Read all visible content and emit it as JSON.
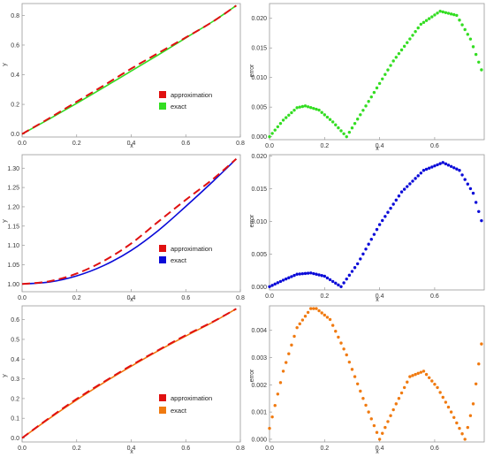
{
  "colors": {
    "approximation": "#e01010",
    "exact_1": "#33dd22",
    "exact_2": "#0a0ad8",
    "exact_3": "#f07a10",
    "frame": "#999999"
  },
  "chart_data": [
    {
      "id": "p1",
      "type": "line",
      "xlabel": "x",
      "ylabel": "y",
      "xlim": [
        0,
        0.8
      ],
      "ylim": [
        -0.02,
        0.88
      ],
      "xticks": [
        "0.0",
        "0.2",
        "0.4",
        "0.6",
        "0.8"
      ],
      "yticks": [
        "0.0",
        "0.2",
        "0.4",
        "0.6",
        "0.8"
      ],
      "legend": [
        "approximation",
        "exact"
      ],
      "legend_position": "center-right",
      "series": [
        {
          "name": "approximation",
          "style": "dashed",
          "color": "#e01010",
          "x": [
            0,
            0.1,
            0.2,
            0.3,
            0.4,
            0.5,
            0.6,
            0.7,
            0.785
          ],
          "y": [
            0,
            0.107,
            0.218,
            0.328,
            0.441,
            0.547,
            0.651,
            0.759,
            0.866
          ]
        },
        {
          "name": "exact",
          "style": "solid",
          "color": "#33dd22",
          "x": [
            0,
            0.1,
            0.2,
            0.3,
            0.4,
            0.5,
            0.6,
            0.7,
            0.785
          ],
          "y": [
            0,
            0.102,
            0.207,
            0.315,
            0.425,
            0.535,
            0.648,
            0.76,
            0.866
          ]
        }
      ]
    },
    {
      "id": "p2",
      "type": "scatter",
      "xlabel": "x",
      "ylabel": "error",
      "xlim": [
        0,
        0.78
      ],
      "ylim": [
        -0.0005,
        0.0225
      ],
      "xticks": [
        "0.0",
        "0.2",
        "0.4",
        "0.6"
      ],
      "yticks": [
        "0.000",
        "0.005",
        "0.010",
        "0.015",
        "0.020"
      ],
      "series": [
        {
          "color": "#33dd22",
          "x": [
            0,
            0.05,
            0.1,
            0.13,
            0.18,
            0.23,
            0.28,
            0.35,
            0.45,
            0.55,
            0.62,
            0.68,
            0.73,
            0.77
          ],
          "y": [
            0,
            0.0028,
            0.0049,
            0.0052,
            0.0045,
            0.0025,
            0,
            0.0052,
            0.0128,
            0.019,
            0.0212,
            0.0205,
            0.0165,
            0.0113
          ]
        }
      ]
    },
    {
      "id": "p3",
      "type": "line",
      "xlabel": "x",
      "ylabel": "y",
      "xlim": [
        0,
        0.8
      ],
      "ylim": [
        0.98,
        1.335
      ],
      "xticks": [
        "0.0",
        "0.2",
        "0.4",
        "0.6",
        "0.8"
      ],
      "yticks": [
        "1.00",
        "1.05",
        "1.10",
        "1.15",
        "1.20",
        "1.25",
        "1.30"
      ],
      "legend": [
        "approximation",
        "exact"
      ],
      "legend_position": "center-right",
      "series": [
        {
          "name": "approximation",
          "style": "dashed",
          "color": "#e01010",
          "x": [
            0,
            0.1,
            0.2,
            0.3,
            0.4,
            0.5,
            0.6,
            0.7,
            0.785
          ],
          "y": [
            1.0,
            1.007,
            1.027,
            1.06,
            1.105,
            1.162,
            1.218,
            1.272,
            1.324
          ]
        },
        {
          "name": "exact",
          "style": "solid",
          "color": "#0a0ad8",
          "x": [
            0,
            0.1,
            0.2,
            0.3,
            0.4,
            0.5,
            0.6,
            0.7,
            0.785
          ],
          "y": [
            1.0,
            1.005,
            1.021,
            1.048,
            1.087,
            1.139,
            1.201,
            1.266,
            1.324
          ]
        }
      ]
    },
    {
      "id": "p4",
      "type": "scatter",
      "xlabel": "x",
      "ylabel": "error",
      "xlim": [
        0,
        0.78
      ],
      "ylim": [
        -0.0005,
        0.0202
      ],
      "xticks": [
        "0.0",
        "0.2",
        "0.4",
        "0.6"
      ],
      "yticks": [
        "0.000",
        "0.005",
        "0.010",
        "0.015",
        "0.020"
      ],
      "series": [
        {
          "color": "#0a0ad8",
          "x": [
            0,
            0.05,
            0.1,
            0.15,
            0.2,
            0.26,
            0.32,
            0.4,
            0.48,
            0.56,
            0.63,
            0.69,
            0.74,
            0.77
          ],
          "y": [
            0,
            0.001,
            0.0019,
            0.0021,
            0.0016,
            0,
            0.0035,
            0.0095,
            0.0145,
            0.0178,
            0.019,
            0.0178,
            0.0143,
            0.0101
          ]
        }
      ]
    },
    {
      "id": "p5",
      "type": "line",
      "xlabel": "x",
      "ylabel": "y",
      "xlim": [
        0,
        0.8
      ],
      "ylim": [
        -0.02,
        0.67
      ],
      "xticks": [
        "0.0",
        "0.2",
        "0.4",
        "0.6",
        "0.8"
      ],
      "yticks": [
        "0.0",
        "0.1",
        "0.2",
        "0.3",
        "0.4",
        "0.5",
        "0.6"
      ],
      "legend": [
        "approximation",
        "exact"
      ],
      "legend_position": "center-right",
      "series": [
        {
          "name": "approximation",
          "style": "dashed",
          "color": "#e01010",
          "x": [
            0,
            0.1,
            0.2,
            0.3,
            0.4,
            0.5,
            0.6,
            0.7,
            0.785
          ],
          "y": [
            0,
            0.102,
            0.198,
            0.285,
            0.368,
            0.446,
            0.521,
            0.59,
            0.655
          ]
        },
        {
          "name": "exact",
          "style": "solid",
          "color": "#f07a10",
          "x": [
            0,
            0.1,
            0.2,
            0.3,
            0.4,
            0.5,
            0.6,
            0.7,
            0.785
          ],
          "y": [
            0,
            0.099,
            0.193,
            0.281,
            0.364,
            0.443,
            0.517,
            0.588,
            0.655
          ]
        }
      ]
    },
    {
      "id": "p6",
      "type": "scatter",
      "xlabel": "x",
      "ylabel": "error",
      "xlim": [
        0,
        0.78
      ],
      "ylim": [
        -0.0001,
        0.0049
      ],
      "xticks": [
        "0.0",
        "0.2",
        "0.4",
        "0.6"
      ],
      "yticks": [
        "0.000",
        "0.001",
        "0.002",
        "0.003",
        "0.004"
      ],
      "series": [
        {
          "color": "#f07a10",
          "x": [
            0,
            0.05,
            0.1,
            0.15,
            0.17,
            0.22,
            0.28,
            0.34,
            0.4,
            0.46,
            0.51,
            0.56,
            0.61,
            0.66,
            0.71,
            0.74,
            0.77
          ],
          "y": [
            0.0004,
            0.0025,
            0.0041,
            0.0048,
            0.0048,
            0.0044,
            0.0031,
            0.0015,
            0,
            0.0013,
            0.0023,
            0.0025,
            0.0019,
            0.001,
            0,
            0.0013,
            0.0035
          ]
        }
      ]
    }
  ],
  "panels": {
    "p1": {
      "xlabel": "x",
      "ylabel": "y",
      "legend": [
        "approximation",
        "exact"
      ]
    },
    "p2": {
      "xlabel": "x",
      "ylabel": "error"
    },
    "p3": {
      "xlabel": "x",
      "ylabel": "y",
      "legend": [
        "approximation",
        "exact"
      ]
    },
    "p4": {
      "xlabel": "x",
      "ylabel": "error"
    },
    "p5": {
      "xlabel": "x",
      "ylabel": "y",
      "legend": [
        "approximation",
        "exact"
      ]
    },
    "p6": {
      "xlabel": "x",
      "ylabel": "error"
    }
  }
}
